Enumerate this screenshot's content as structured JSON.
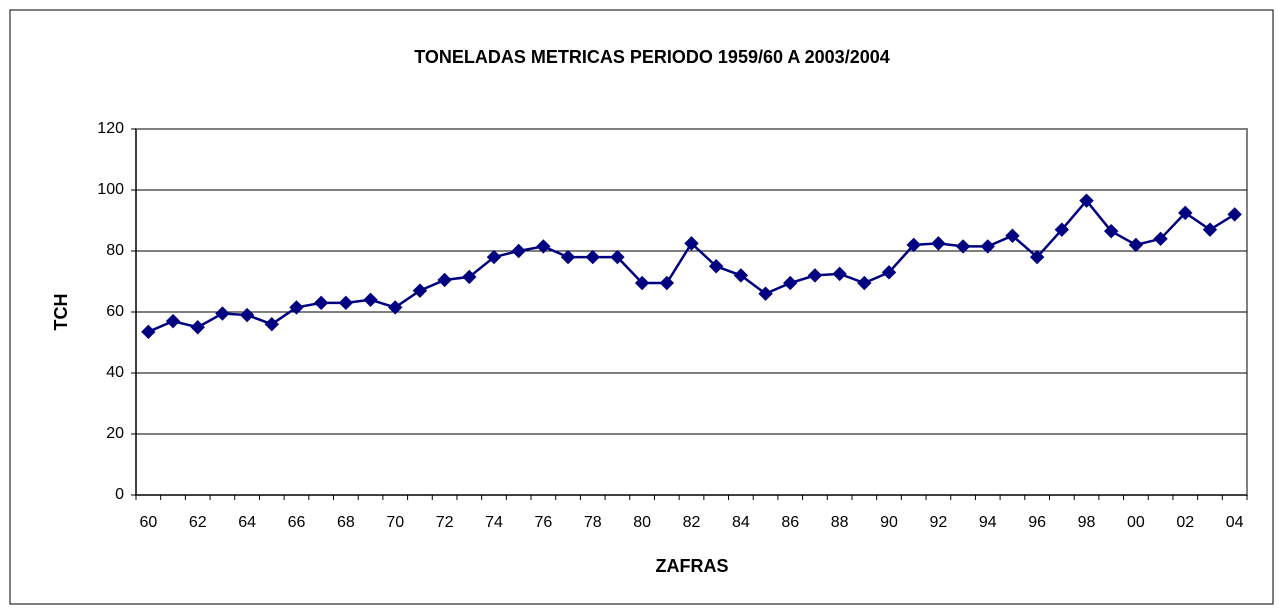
{
  "chart_data": {
    "type": "line",
    "title": "TONELADAS METRICAS PERIODO 1959/60 A 2003/2004",
    "x_label": "ZAFRAS",
    "y_label": "TCH",
    "categories": [
      "60",
      null,
      "62",
      null,
      "64",
      null,
      "66",
      null,
      "68",
      null,
      "70",
      null,
      "72",
      null,
      "74",
      null,
      "76",
      null,
      "78",
      null,
      "80",
      null,
      "82",
      null,
      "84",
      null,
      "86",
      null,
      "88",
      null,
      "90",
      null,
      "92",
      null,
      "94",
      null,
      "96",
      null,
      "98",
      null,
      "00",
      null,
      "02",
      null,
      "04"
    ],
    "values": [
      53.5,
      57,
      55,
      59.5,
      59,
      56,
      61.5,
      63,
      63,
      64,
      61.5,
      67,
      70.5,
      71.5,
      78,
      80,
      81.5,
      78,
      78,
      78,
      69.5,
      69.5,
      82.5,
      75,
      72,
      66,
      69.5,
      72,
      72.5,
      69.5,
      73,
      82,
      82.5,
      81.5,
      81.5,
      85,
      78,
      87,
      96.5,
      86.5,
      82,
      84,
      92.5,
      87,
      92
    ],
    "color": "#000080",
    "ylim": [
      0,
      120
    ],
    "yticks": [
      0,
      20,
      40,
      60,
      80,
      100,
      120
    ],
    "grid": true
  }
}
